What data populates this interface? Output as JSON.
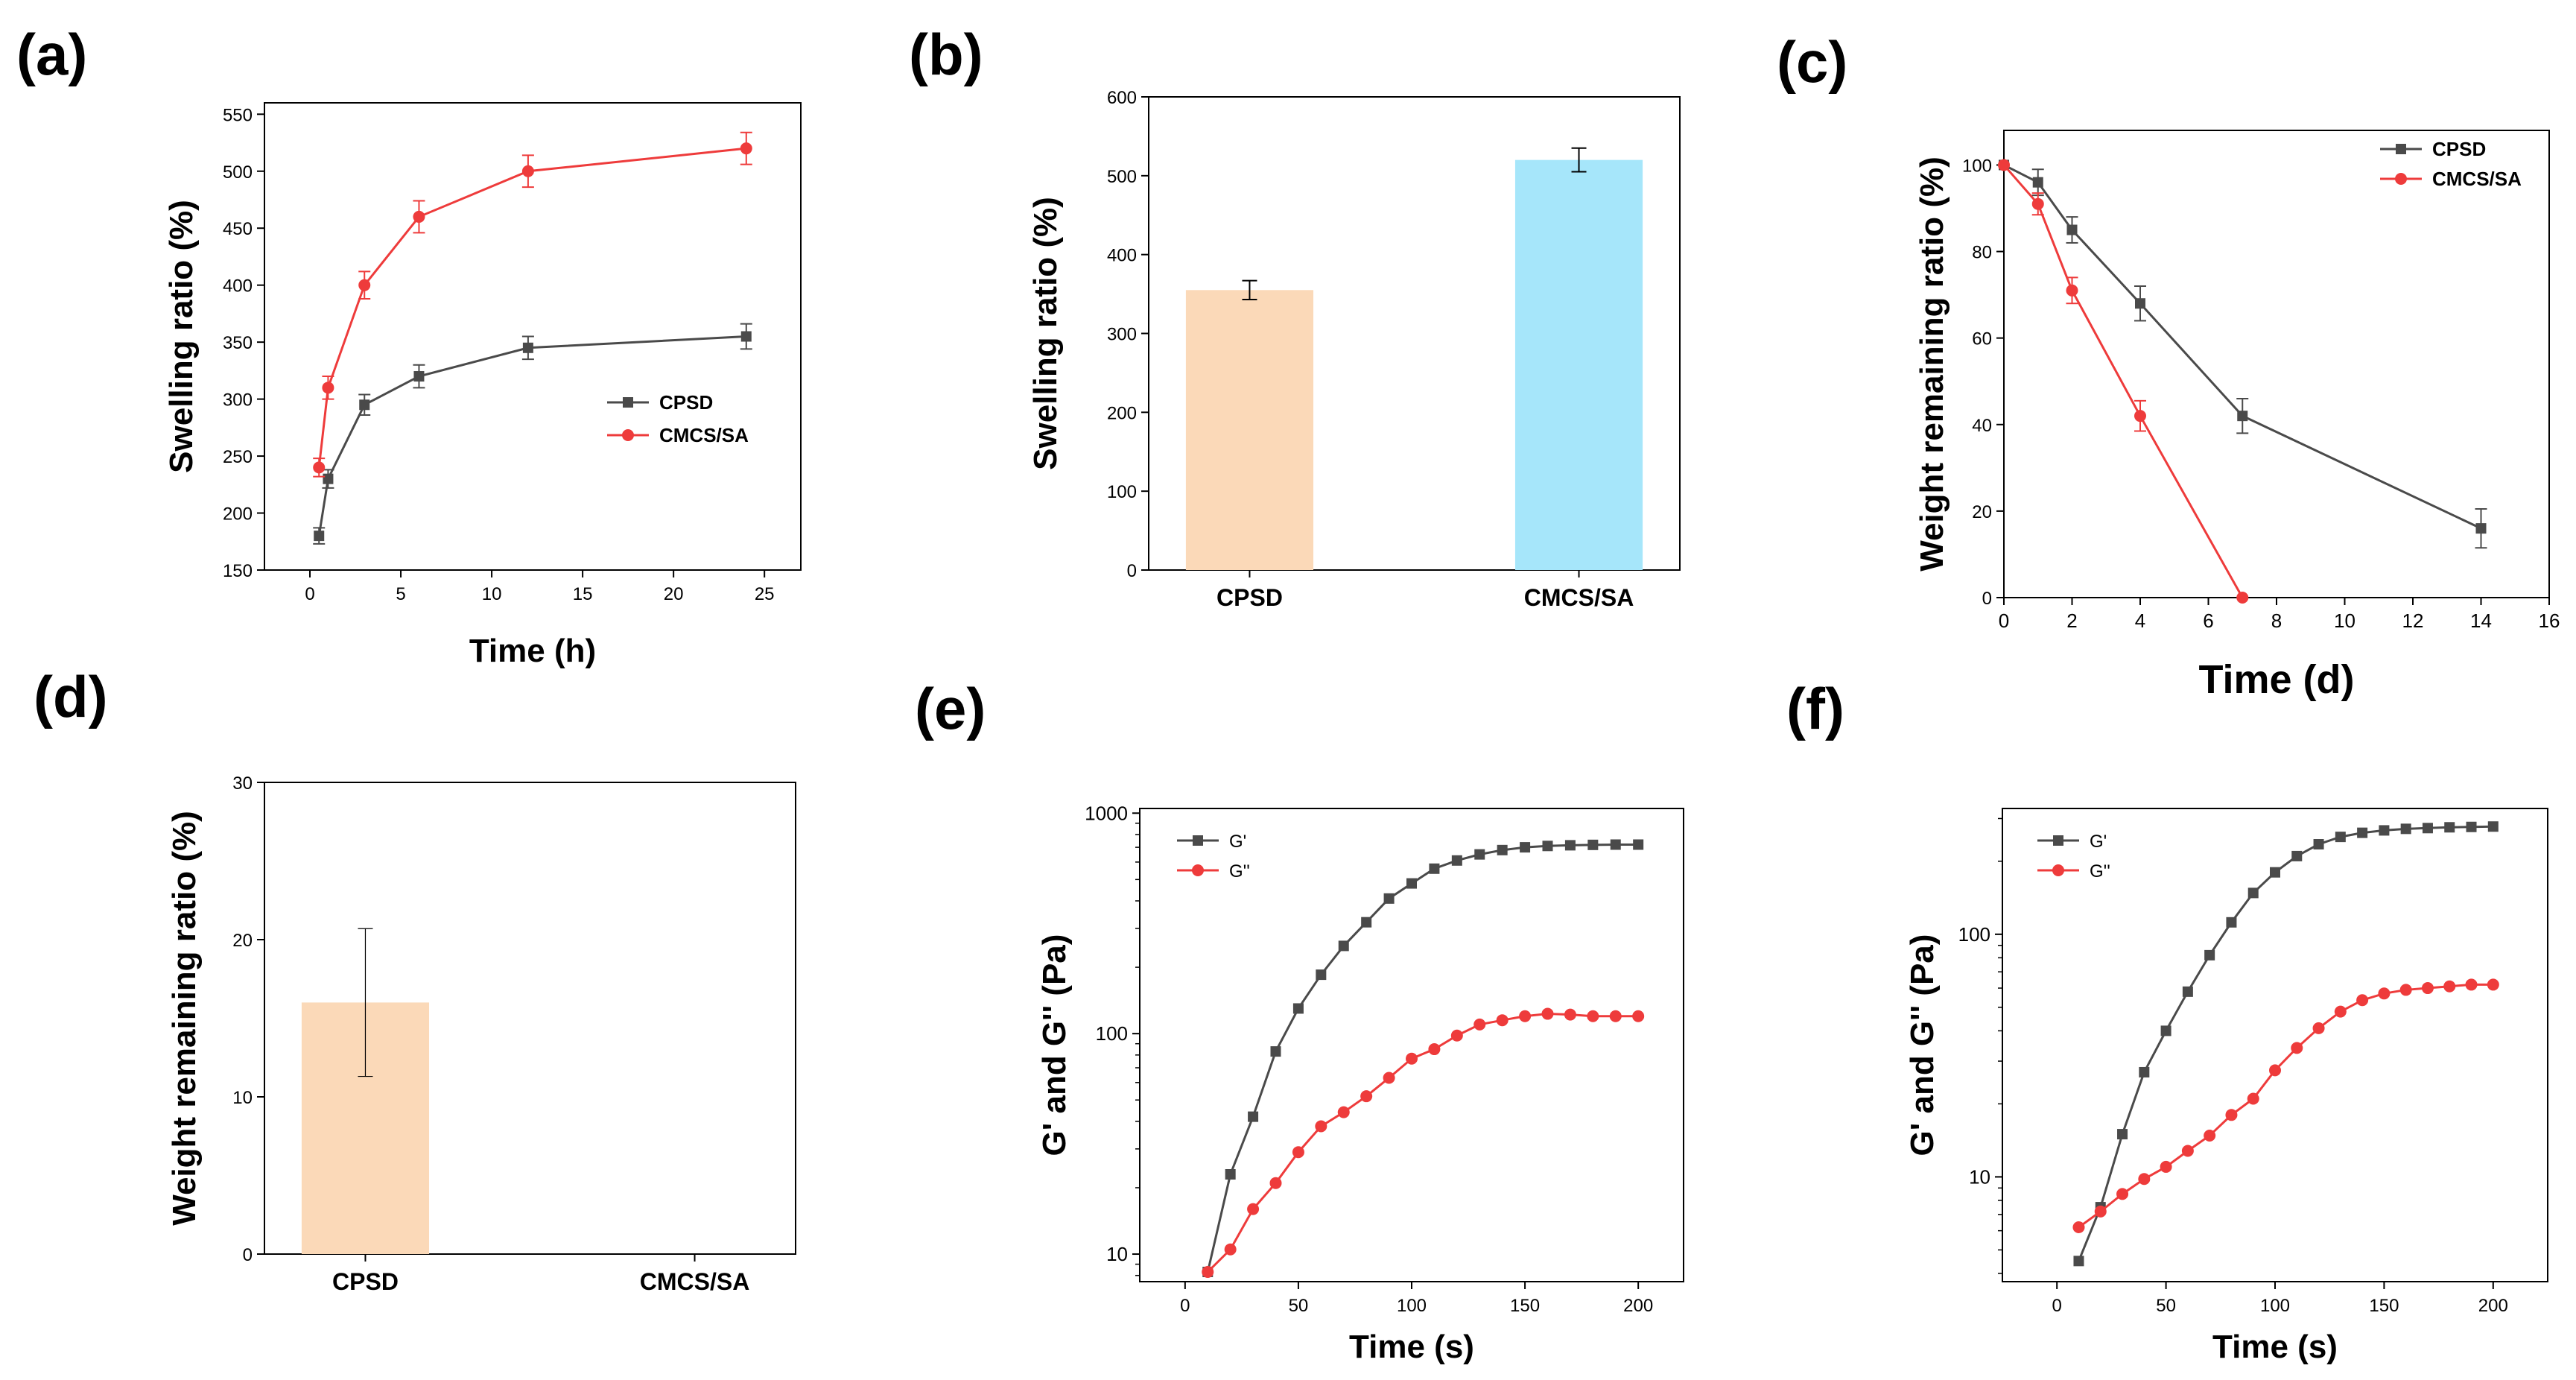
{
  "colors": {
    "cpsd": "#4a4a4a",
    "cmcs": "#ee3b3b",
    "bar1": "#fbd9b8",
    "bar2": "#a6e6fa",
    "gprime": "#4a4a4a",
    "gdouble": "#ee3b3b"
  },
  "chart_data": [
    {
      "panel": "(a)",
      "type": "line",
      "xlabel": "Time (h)",
      "ylabel": "Swelling ratio (%)",
      "xlim": [
        -2.5,
        27
      ],
      "ylim": [
        150,
        560
      ],
      "xticks": [
        0,
        5,
        10,
        15,
        20,
        25
      ],
      "yticks": [
        150,
        200,
        250,
        300,
        350,
        400,
        450,
        500,
        550
      ],
      "legend_position": "center-right",
      "series": [
        {
          "name": "CPSD",
          "color": "#4a4a4a",
          "marker": "square",
          "x": [
            0.5,
            1,
            3,
            6,
            12,
            24
          ],
          "y": [
            180,
            230,
            295,
            320,
            345,
            355
          ],
          "err": [
            7,
            8,
            9,
            10,
            10,
            11
          ]
        },
        {
          "name": "CMCS/SA",
          "color": "#ee3b3b",
          "marker": "circle",
          "x": [
            0.5,
            1,
            3,
            6,
            12,
            24
          ],
          "y": [
            240,
            310,
            400,
            460,
            500,
            520
          ],
          "err": [
            8,
            10,
            12,
            14,
            14,
            14
          ]
        }
      ]
    },
    {
      "panel": "(b)",
      "type": "bar",
      "xlabel": "",
      "ylabel": "Swelling ratio (%)",
      "ylim": [
        0,
        600
      ],
      "yticks": [
        0,
        100,
        200,
        300,
        400,
        500,
        600
      ],
      "categories": [
        "CPSD",
        "CMCS/SA"
      ],
      "values": [
        355,
        520
      ],
      "err": [
        12,
        15
      ],
      "colors": [
        "#fbd9b8",
        "#a6e6fa"
      ]
    },
    {
      "panel": "(c)",
      "type": "line",
      "xlabel": "Time (d)",
      "ylabel": "Weight remaining ratio (%)",
      "xlim": [
        0,
        16
      ],
      "ylim": [
        0,
        108
      ],
      "xticks": [
        0,
        2,
        4,
        6,
        8,
        10,
        12,
        14,
        16
      ],
      "yticks": [
        0,
        20,
        40,
        60,
        80,
        100
      ],
      "legend_position": "top-right",
      "series": [
        {
          "name": "CPSD",
          "color": "#4a4a4a",
          "marker": "square",
          "x": [
            0,
            1,
            2,
            4,
            7,
            14
          ],
          "y": [
            100,
            96,
            85,
            68,
            42,
            16
          ],
          "err": [
            0,
            3,
            3,
            4,
            4,
            4.5
          ]
        },
        {
          "name": "CMCS/SA",
          "color": "#ee3b3b",
          "marker": "circle",
          "x": [
            0,
            1,
            2,
            4,
            7
          ],
          "y": [
            100,
            91,
            71,
            42,
            0
          ],
          "err": [
            0,
            2.5,
            3,
            3.5,
            0
          ]
        }
      ]
    },
    {
      "panel": "(d)",
      "type": "bar",
      "xlabel": "",
      "ylabel": "Weight remaining ratio (%)",
      "ylim": [
        0,
        30
      ],
      "yticks": [
        0,
        10,
        20,
        30
      ],
      "categories": [
        "CPSD",
        "CMCS/SA"
      ],
      "values": [
        16,
        0
      ],
      "err": [
        4.7,
        0
      ],
      "colors": [
        "#fbd9b8",
        "#a6e6fa"
      ]
    },
    {
      "panel": "(e)",
      "type": "line",
      "yscale": "log",
      "xlabel": "Time (s)",
      "ylabel": "G' and G'' (Pa)",
      "xlim": [
        -20,
        220
      ],
      "ylim": [
        7.5,
        1050
      ],
      "xticks": [
        0,
        50,
        100,
        150,
        200
      ],
      "yticks": [
        10,
        100,
        1000
      ],
      "legend_position": "top-left",
      "series": [
        {
          "name": "G'",
          "color": "#4a4a4a",
          "marker": "square",
          "x": [
            10,
            20,
            30,
            40,
            50,
            60,
            70,
            80,
            90,
            100,
            110,
            120,
            130,
            140,
            150,
            160,
            170,
            180,
            190,
            200
          ],
          "y": [
            8.3,
            23,
            42,
            83,
            130,
            185,
            250,
            320,
            410,
            480,
            560,
            610,
            650,
            680,
            700,
            710,
            715,
            718,
            720,
            720
          ]
        },
        {
          "name": "G''",
          "color": "#ee3b3b",
          "marker": "circle",
          "x": [
            10,
            20,
            30,
            40,
            50,
            60,
            70,
            80,
            90,
            100,
            110,
            120,
            130,
            140,
            150,
            160,
            170,
            180,
            190,
            200
          ],
          "y": [
            8.3,
            10.5,
            16,
            21,
            29,
            38,
            44,
            52,
            63,
            77,
            85,
            98,
            110,
            115,
            120,
            123,
            122,
            120,
            120,
            120
          ]
        }
      ]
    },
    {
      "panel": "(f)",
      "type": "line",
      "yscale": "log",
      "xlabel": "Time (s)",
      "ylabel": "G' and G'' (Pa)",
      "xlim": [
        -25,
        225
      ],
      "ylim": [
        3.7,
        330
      ],
      "xticks": [
        0,
        50,
        100,
        150,
        200
      ],
      "yticks": [
        10,
        100
      ],
      "legend_position": "top-left",
      "series": [
        {
          "name": "G'",
          "color": "#4a4a4a",
          "marker": "square",
          "x": [
            10,
            20,
            30,
            40,
            50,
            60,
            70,
            80,
            90,
            100,
            110,
            120,
            130,
            140,
            150,
            160,
            170,
            180,
            190,
            200
          ],
          "y": [
            4.5,
            7.5,
            15,
            27,
            40,
            58,
            82,
            112,
            148,
            180,
            210,
            235,
            252,
            262,
            268,
            272,
            274,
            276,
            277,
            278
          ]
        },
        {
          "name": "G''",
          "color": "#ee3b3b",
          "marker": "circle",
          "x": [
            10,
            20,
            30,
            40,
            50,
            60,
            70,
            80,
            90,
            100,
            110,
            120,
            130,
            140,
            150,
            160,
            170,
            180,
            190,
            200
          ],
          "y": [
            6.2,
            7.2,
            8.5,
            9.8,
            11,
            12.8,
            14.8,
            18,
            21,
            27.5,
            34,
            41,
            48,
            53.5,
            57,
            59,
            60,
            61,
            62,
            62
          ]
        }
      ]
    }
  ]
}
